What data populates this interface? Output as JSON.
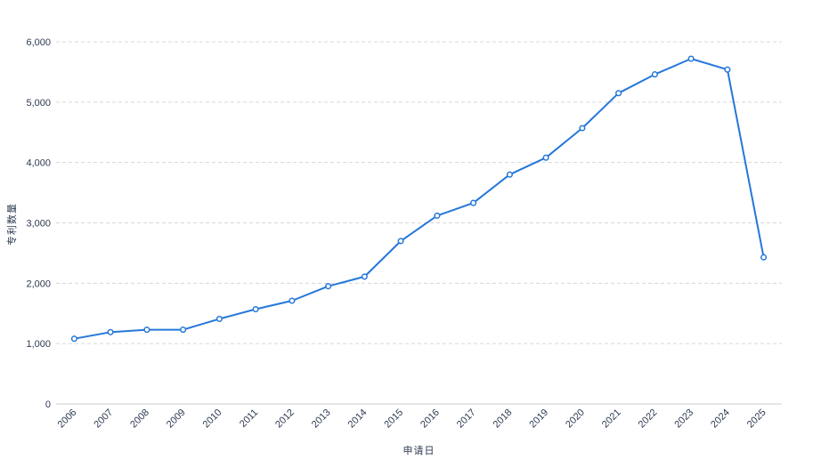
{
  "chart_data": {
    "type": "line",
    "title": "",
    "xlabel": "申请日",
    "ylabel": "专利数量",
    "x": [
      "2006",
      "2007",
      "2008",
      "2009",
      "2010",
      "2011",
      "2012",
      "2013",
      "2014",
      "2015",
      "2016",
      "2017",
      "2018",
      "2019",
      "2020",
      "2021",
      "2022",
      "2023",
      "2024",
      "2025"
    ],
    "series": [
      {
        "name": "专利数量",
        "values": [
          1080,
          1190,
          1230,
          1230,
          1410,
          1570,
          1710,
          1950,
          2110,
          2700,
          3120,
          3330,
          3800,
          4080,
          4570,
          5150,
          5460,
          5720,
          5540,
          2430
        ]
      }
    ],
    "ylim": [
      0,
      6000
    ],
    "y_tick_values": [
      0,
      1000,
      2000,
      3000,
      4000,
      5000,
      6000
    ],
    "y_tick_labels": [
      "0",
      "1,000",
      "2,000",
      "3,000",
      "4,000",
      "5,000",
      "6,000"
    ],
    "grid": "horizontal-dashed",
    "legend_position": "none",
    "marker": "hollow-circle"
  },
  "style": {
    "line_color": "#2577d9",
    "marker_fill": "#ffffff",
    "grid_color": "#d8d8d8",
    "axis_line_color": "#c8ccd4",
    "label_color": "#2d3a52",
    "background": "#ffffff"
  }
}
